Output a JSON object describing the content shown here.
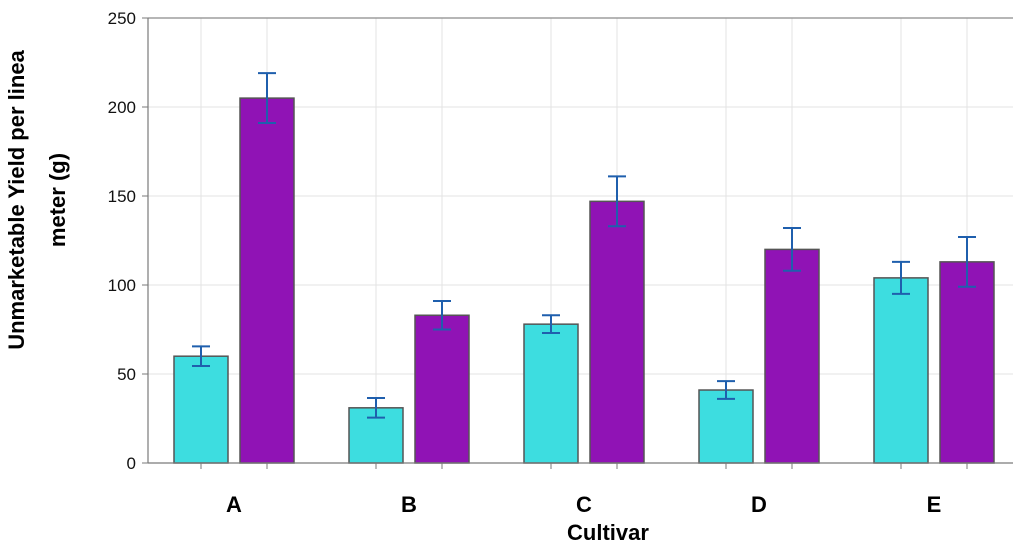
{
  "chart_data": {
    "type": "bar",
    "categories": [
      "A",
      "B",
      "C",
      "D",
      "E"
    ],
    "series": [
      {
        "values": [
          60,
          31,
          78,
          41,
          104
        ],
        "errors": [
          5.5,
          5.5,
          5,
          5,
          9
        ],
        "color": "#3ddde0"
      },
      {
        "values": [
          205,
          83,
          147,
          120,
          113
        ],
        "errors": [
          14,
          8,
          14,
          12,
          14
        ],
        "color": "#9013b5"
      }
    ],
    "xlabel": "Cultivar",
    "ylabel_line1": "Unmarketable Yield per linea",
    "ylabel_line2": "meter (g)",
    "yticks": [
      "0",
      "50",
      "100",
      "150",
      "200",
      "250"
    ],
    "ylim": [
      0,
      250
    ],
    "grid": true,
    "error_bar_color": "#1f5fad"
  }
}
